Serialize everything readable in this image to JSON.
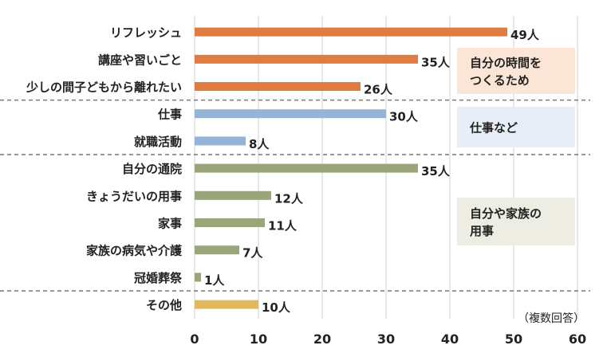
{
  "chart_data": {
    "type": "bar",
    "orientation": "horizontal",
    "categories": [
      "リフレッシュ",
      "講座や習いごと",
      "少しの間子どもから離れたい",
      "仕事",
      "就職活動",
      "自分の通院",
      "きょうだいの用事",
      "家事",
      "家族の病気や介護",
      "冠婚葬祭",
      "その他"
    ],
    "values": [
      49,
      35,
      26,
      30,
      8,
      35,
      12,
      11,
      7,
      1,
      10
    ],
    "value_labels": [
      "49人",
      "35人",
      "26人",
      "30人",
      "8人",
      "35人",
      "12人",
      "11人",
      "7人",
      "1人",
      "10人"
    ],
    "xlim": [
      0,
      60
    ],
    "xticks": [
      "0",
      "10",
      "20",
      "30",
      "40",
      "50",
      "60"
    ],
    "grid": "vertical",
    "note": "（複数回答）",
    "groups": [
      {
        "label_lines": [
          "自分の時間を",
          "つくるため"
        ],
        "start": 0,
        "end": 2,
        "color": "#e07b42",
        "box_color": "#fbe5d6"
      },
      {
        "label_lines": [
          "仕事など"
        ],
        "start": 3,
        "end": 4,
        "color": "#95b3d7",
        "box_color": "#e8eef7"
      },
      {
        "label_lines": [
          "自分や家族の",
          "用事"
        ],
        "start": 5,
        "end": 9,
        "color": "#9aa57a",
        "box_color": "#ededE4"
      },
      {
        "label_lines": [],
        "start": 10,
        "end": 10,
        "color": "#e0b85e",
        "box_color": ""
      }
    ]
  }
}
